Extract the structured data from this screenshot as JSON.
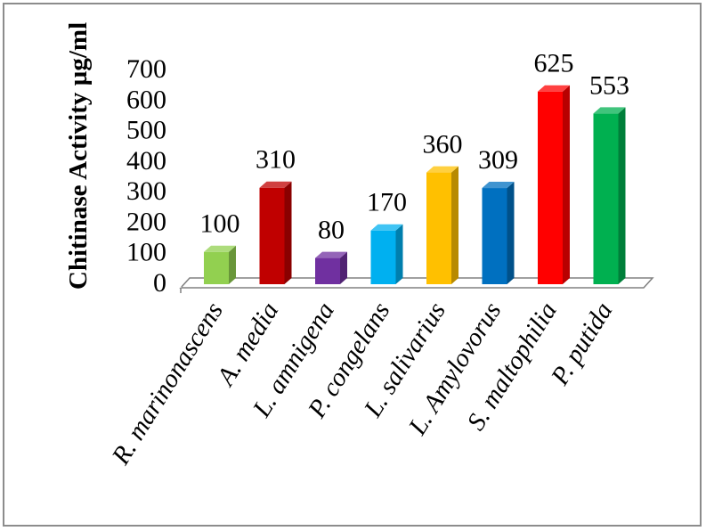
{
  "chart_data": {
    "type": "bar",
    "title": "",
    "xlabel": "",
    "ylabel": "Chitinase  Activity µg/ml",
    "categories": [
      "R. marinonascens",
      "A. media",
      "L. amnigena",
      "P. congelans",
      "L. salivarius",
      "L. Amylovorus",
      "S. maltophilia",
      "P. putida"
    ],
    "values": [
      100,
      310,
      80,
      170,
      360,
      309,
      625,
      553
    ],
    "data_labels": [
      "100",
      "310",
      "80",
      "170",
      "360",
      "309",
      "625",
      "553"
    ],
    "ylim": [
      0,
      700
    ],
    "yticks": [
      "0",
      "100",
      "200",
      "300",
      "400",
      "500",
      "600",
      "700"
    ],
    "colors": [
      "#92d050",
      "#c00000",
      "#7030a0",
      "#00b0f0",
      "#ffc000",
      "#0070c0",
      "#ff0000",
      "#00b050"
    ],
    "grid": false,
    "legend": "none",
    "style": "3d-column"
  }
}
